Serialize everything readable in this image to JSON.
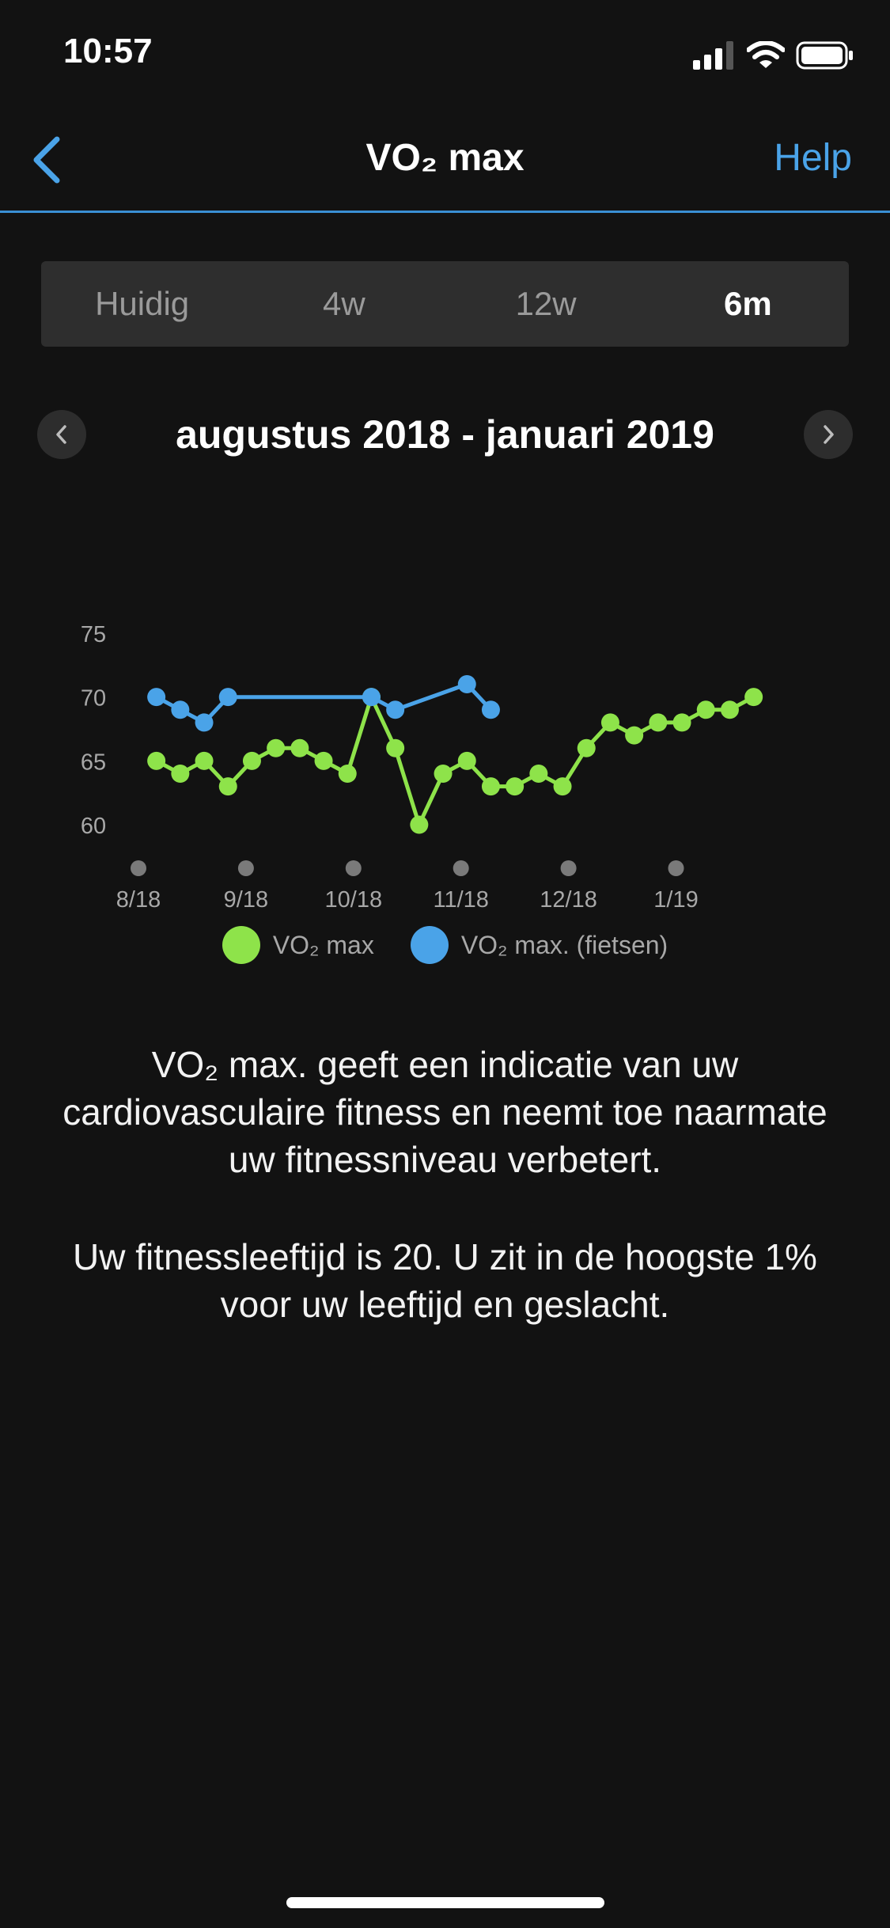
{
  "status": {
    "time": "10:57"
  },
  "nav": {
    "title": "VO₂ max",
    "help": "Help"
  },
  "tabs": [
    {
      "label": "Huidig",
      "active": false
    },
    {
      "label": "4w",
      "active": false
    },
    {
      "label": "12w",
      "active": false
    },
    {
      "label": "6m",
      "active": true
    }
  ],
  "period": {
    "label": "augustus 2018 - januari 2019"
  },
  "legend": {
    "vo2": "VO₂ max",
    "vo2_cycling": "VO₂ max. (fietsen)"
  },
  "colors": {
    "vo2": "#8ee34a",
    "vo2_cycling": "#4aa3e8",
    "accent": "#4aa3e8"
  },
  "description": {
    "line1": "VO₂ max. geeft een indicatie van uw cardiovasculaire fitness en neemt toe naarmate uw fitnessniveau verbetert.",
    "line2": "Uw fitnessleeftijd is 20. U zit in de hoogste 1% voor uw leeftijd en geslacht."
  },
  "chart_data": {
    "type": "line",
    "x_ticks": [
      "8/18",
      "9/18",
      "10/18",
      "11/18",
      "12/18",
      "1/19"
    ],
    "x_tick_positions": [
      0,
      4.5,
      9,
      13.5,
      18,
      22.5
    ],
    "y_ticks": [
      60,
      65,
      70,
      75
    ],
    "ylim": [
      60,
      75
    ],
    "legend_position": "bottom",
    "series": [
      {
        "name": "VO₂ max",
        "color": "#8ee34a",
        "points": [
          [
            0.75,
            65
          ],
          [
            1.75,
            64
          ],
          [
            2.75,
            65
          ],
          [
            3.75,
            63
          ],
          [
            4.75,
            65
          ],
          [
            5.75,
            66
          ],
          [
            6.75,
            66
          ],
          [
            7.75,
            65
          ],
          [
            8.75,
            64
          ],
          [
            9.75,
            70
          ],
          [
            10.75,
            66
          ],
          [
            11.75,
            60
          ],
          [
            12.75,
            64
          ],
          [
            13.75,
            65
          ],
          [
            14.75,
            63
          ],
          [
            15.75,
            63
          ],
          [
            16.75,
            64
          ],
          [
            17.75,
            63
          ],
          [
            18.75,
            66
          ],
          [
            19.75,
            68
          ],
          [
            20.75,
            67
          ],
          [
            21.75,
            68
          ],
          [
            22.75,
            68
          ],
          [
            23.75,
            69
          ],
          [
            24.75,
            69
          ],
          [
            25.75,
            70
          ]
        ]
      },
      {
        "name": "VO₂ max. (fietsen)",
        "color": "#4aa3e8",
        "points": [
          [
            0.75,
            70
          ],
          [
            1.75,
            69
          ],
          [
            2.75,
            68
          ],
          [
            3.75,
            70
          ],
          [
            9.75,
            70
          ],
          [
            10.75,
            69
          ],
          [
            13.75,
            71
          ],
          [
            14.75,
            69
          ]
        ]
      }
    ]
  }
}
